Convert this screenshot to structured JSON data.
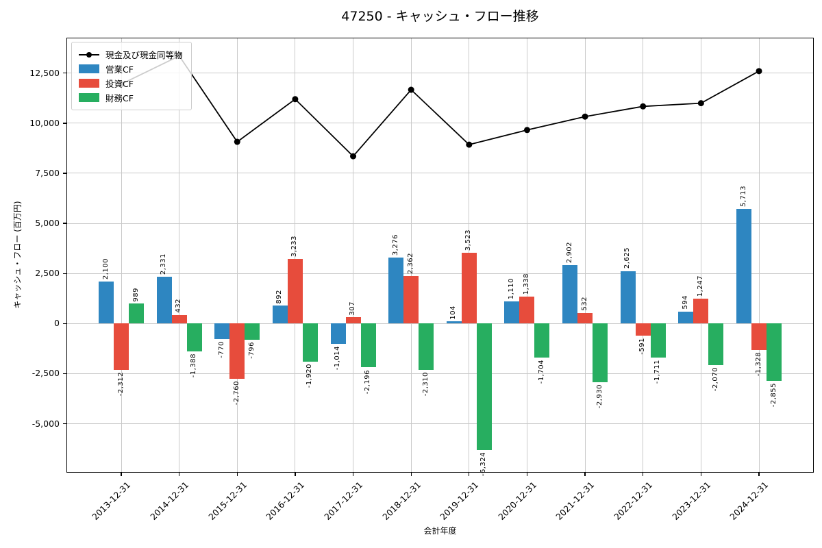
{
  "chart_data": {
    "type": "combo-bar-line",
    "title": "47250 - キャッシュ・フロー推移",
    "xlabel": "会計年度",
    "ylabel": "キャッシュ・フロー (百万円)",
    "categories": [
      "2013-12-31",
      "2014-12-31",
      "2015-12-31",
      "2016-12-31",
      "2017-12-31",
      "2018-12-31",
      "2019-12-31",
      "2020-12-31",
      "2021-12-31",
      "2022-12-31",
      "2023-12-31",
      "2024-12-31"
    ],
    "series": [
      {
        "name": "営業CF",
        "type": "bar",
        "color": "#2e86c1",
        "values": [
          2100,
          2331,
          -770,
          892,
          -1014,
          3276,
          104,
          1110,
          2902,
          2625,
          594,
          5713
        ]
      },
      {
        "name": "投資CF",
        "type": "bar",
        "color": "#e74c3c",
        "values": [
          -2312,
          432,
          -2760,
          3233,
          307,
          2362,
          3523,
          1338,
          532,
          -591,
          1247,
          -1328
        ]
      },
      {
        "name": "財務CF",
        "type": "bar",
        "color": "#27ae60",
        "values": [
          989,
          -1388,
          -796,
          -1920,
          -2196,
          -2310,
          -6324,
          -1704,
          -2930,
          -1711,
          -2070,
          -2855
        ]
      },
      {
        "name": "現金及び現金同等物",
        "type": "line",
        "color": "#000000",
        "values": [
          11950,
          13360,
          9070,
          11200,
          8350,
          11670,
          8930,
          9660,
          10330,
          10840,
          11000,
          12600
        ]
      }
    ],
    "yticks": [
      12500,
      10000,
      7500,
      5000,
      2500,
      0,
      -2500,
      -5000
    ],
    "ylim": [
      -7445,
      14270
    ],
    "grid": true,
    "legend": {
      "position": "upper-left",
      "entries": [
        "現金及び現金同等物",
        "営業CF",
        "投資CF",
        "財務CF"
      ]
    },
    "bar_value_labels": true,
    "xtick_rotation": 45,
    "bar_label_rotation": 90
  }
}
